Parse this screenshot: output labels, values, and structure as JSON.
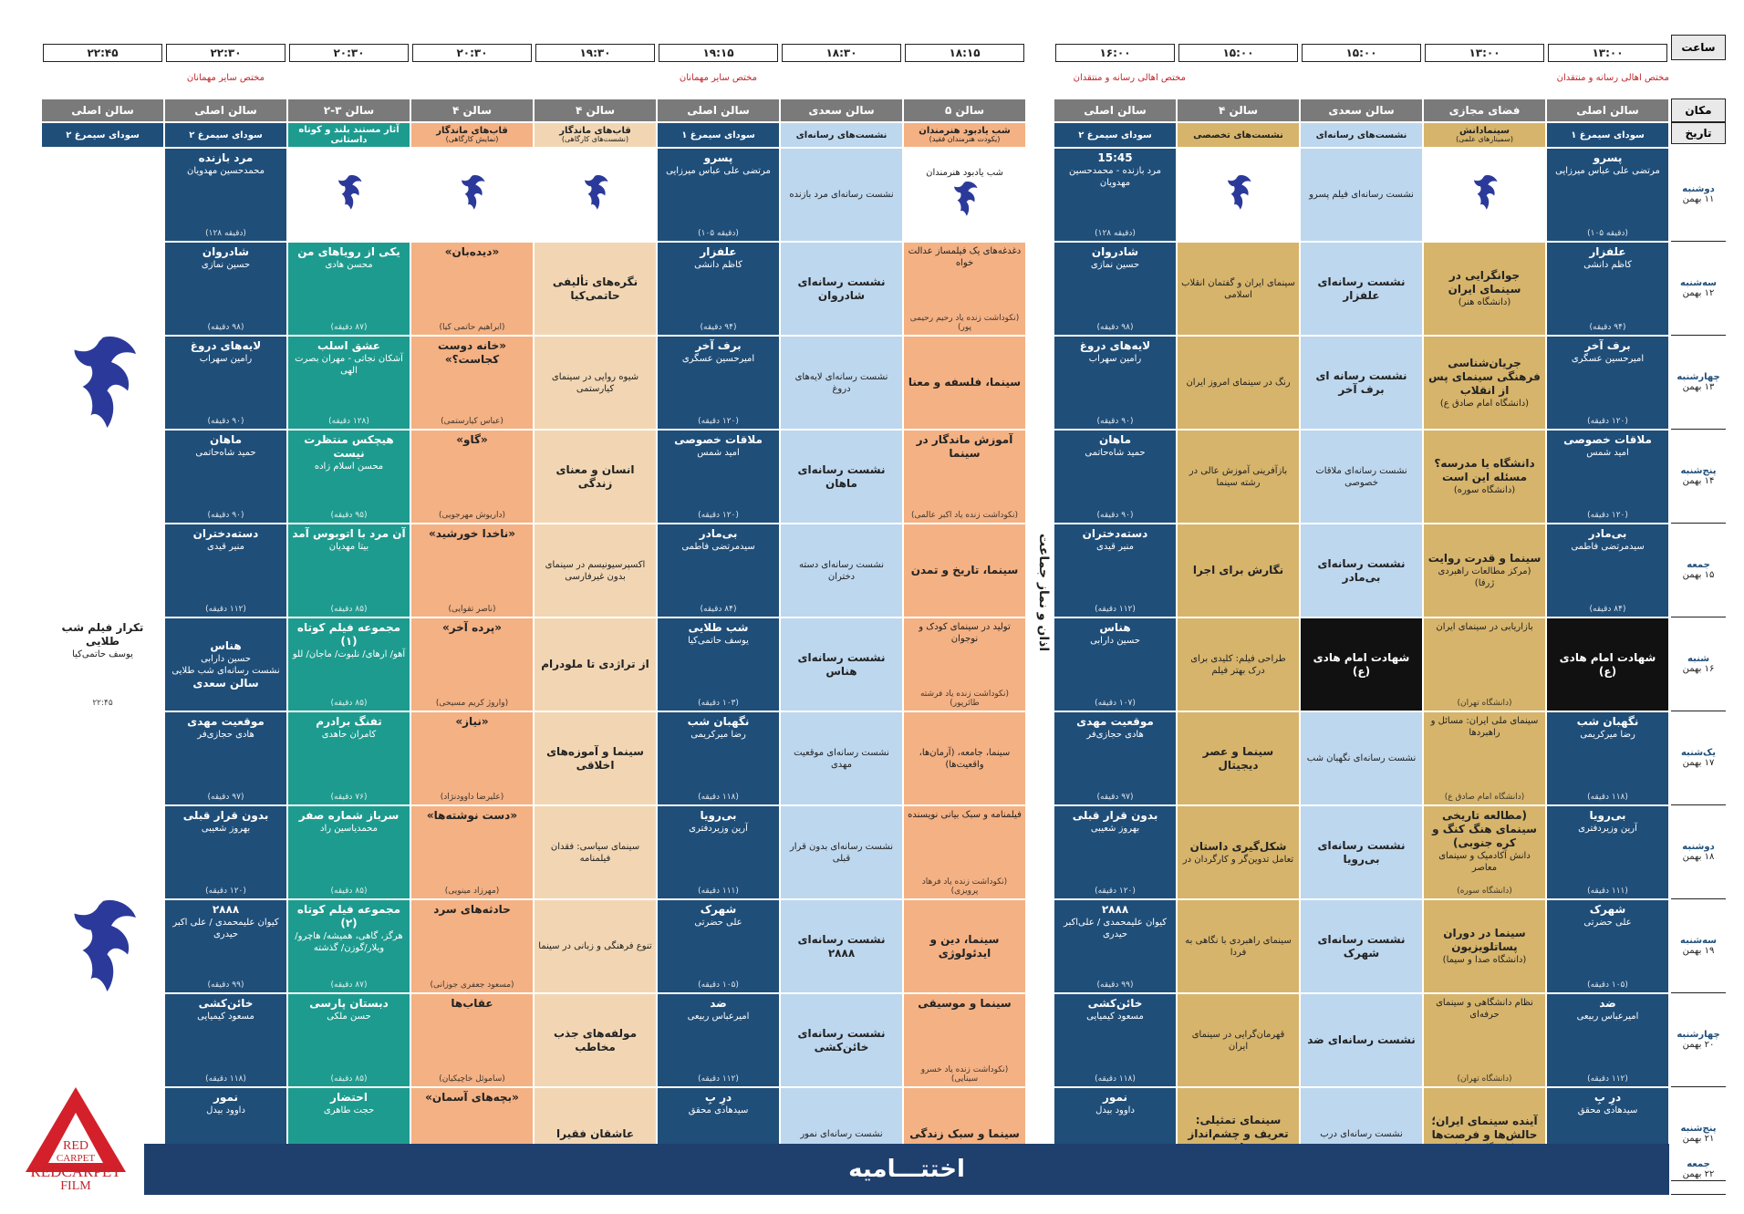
{
  "header": {
    "time_label": "ساعت",
    "place_label": "مکان",
    "date_label": "تاریخ"
  },
  "times": [
    "۱۳:۰۰",
    "۱۳:۰۰",
    "۱۵:۰۰",
    "۱۵:۰۰",
    "۱۶:۰۰",
    "۱۸:۱۵",
    "۱۸:۳۰",
    "۱۹:۱۵",
    "۱۹:۳۰",
    "۲۰:۳۰",
    "۲۰:۳۰",
    "۲۲:۳۰",
    "۲۲:۴۵"
  ],
  "notes": {
    "right_group": "مختص اهالی رسانه و منتقدان",
    "right_group2": "مختص اهالی رسانه و منتقدان",
    "left_group": "مختص سایر مهمانان",
    "left_group2": "مختص سایر مهمانان"
  },
  "venues": [
    "سالن اصلی",
    "فضای مجازی",
    "سالن سعدی",
    "سالن ۴",
    "سالن اصلی",
    "سالن ۵",
    "سالن سعدی",
    "سالن اصلی",
    "سالن ۴",
    "سالن ۴",
    "سالن ۳-۲",
    "سالن اصلی",
    "سالن اصلی"
  ],
  "subheads": [
    {
      "t": "سودای سیمرغ ۱",
      "s": ""
    },
    {
      "t": "سینمادانش",
      "s": "(سمینارهای علمی)"
    },
    {
      "t": "نشست‌های رسانه‌ای",
      "s": ""
    },
    {
      "t": "نشست‌های تخصصی",
      "s": ""
    },
    {
      "t": "سودای سیمرغ ۲",
      "s": ""
    },
    {
      "t": "شب یادبود هنرمندان",
      "s": "(یکودت هنرمندان فقید)"
    },
    {
      "t": "نشست‌های رسانه‌ای",
      "s": ""
    },
    {
      "t": "سودای سیمرغ ۱",
      "s": ""
    },
    {
      "t": "قاب‌های ماندگار",
      "s": "(نشست‌های کارگاهی)"
    },
    {
      "t": "قاب‌های ماندگار",
      "s": "(نمایش کارگاهی)"
    },
    {
      "t": "آثار مستند بلند و کوتاه داستانی",
      "s": ""
    },
    {
      "t": "سودای سیمرغ ۲",
      "s": ""
    },
    {
      "t": "سودای سیمرغ ۲",
      "s": ""
    }
  ],
  "days": [
    {
      "name": "دوشنبه",
      "date": "۱۱ بهمن"
    },
    {
      "name": "سه‌شنبه",
      "date": "۱۲ بهمن"
    },
    {
      "name": "چهارشنبه",
      "date": "۱۳ بهمن"
    },
    {
      "name": "پنج‌شنبه",
      "date": "۱۴ بهمن"
    },
    {
      "name": "جمعه",
      "date": "۱۵ بهمن"
    },
    {
      "name": "شنبه",
      "date": "۱۶ بهمن"
    },
    {
      "name": "یک‌شنبه",
      "date": "۱۷ بهمن"
    },
    {
      "name": "دوشنبه",
      "date": "۱۸ بهمن"
    },
    {
      "name": "سه‌شنبه",
      "date": "۱۹ بهمن"
    },
    {
      "name": "چهارشنبه",
      "date": "۲۰ بهمن"
    },
    {
      "name": "پنج‌شنبه",
      "date": "۲۱ بهمن"
    },
    {
      "name": "جمعه",
      "date": "۲۲ بهمن"
    }
  ],
  "grid": [
    [
      {
        "t": "پسرو",
        "s": "مرتضی علی عباس میرزایی",
        "d": "(دقیقه ۱۰۵)"
      },
      {
        "logo": true
      },
      {
        "s": "نشست رسانه‌ای فیلم پسرو"
      },
      {
        "logo": true
      },
      {
        "t": "15:45",
        "s": "مرد بازنده - محمدحسین مهدویان",
        "d": "(دقیقه ۱۲۸)"
      },
      {
        "logo": true,
        "s": "شب یادبود هنرمندان"
      },
      {
        "s": "نشست رسانه‌ای مرد بازنده"
      },
      {
        "t": "پسرو",
        "s": "مرتضی علی عباس میرزایی",
        "d": "(دقیقه ۱۰۵)"
      },
      {
        "logo": true
      },
      {
        "logo": true
      },
      {
        "logo": true
      },
      {
        "t": "مرد بازنده",
        "s": "محمدحسین مهدویان",
        "d": "(دقیقه ۱۲۸)"
      },
      {
        "bigbird": true
      }
    ],
    [
      {
        "t": "علفزار",
        "s": "کاظم دانشی",
        "d": "(۹۴ دقیقه)"
      },
      {
        "t": "جوانگرایی در سینمای ایران",
        "s": "(دانشگاه هنر)"
      },
      {
        "t": "نشست رسانه‌ای علفزار"
      },
      {
        "s": "سینمای ایران و گفتمان انقلاب اسلامی"
      },
      {
        "t": "شادروان",
        "s": "حسین نمازی",
        "d": "(۹۸ دقیقه)"
      },
      {
        "s": "دغدغه‌های یک فیلمساز عدالت خواه",
        "d": "(نکوداشت زنده یاد رحیم رحیمی پور)"
      },
      {
        "t": "نشست رسانه‌ای شادروان"
      },
      {
        "t": "علفزار",
        "s": "کاظم دانشی",
        "d": "(۹۴ دقیقه)"
      },
      {
        "t": "نگره‌های تألیفی حاتمی‌کیا"
      },
      {
        "t": "«دیده‌بان»",
        "d": "(ابراهیم حاتمی کیا)"
      },
      {
        "t": "یکی از رویاهای من",
        "s": "محسن هادی",
        "d": "(۸۷ دقیقه)"
      },
      {
        "t": "شادروان",
        "s": "حسین نمازی",
        "d": "(۹۸ دقیقه)"
      }
    ],
    [
      {
        "t": "برف آخر",
        "s": "امیرحسین عسگری",
        "d": "(۱۲۰ دقیقه)"
      },
      {
        "t": "جریان‌شناسی فرهنگی سینمای پس از انقلاب",
        "s": "(دانشگاه امام صادق ع)"
      },
      {
        "t": "نشست رسانه ای برف آخر"
      },
      {
        "s": "رنگ در سینمای امروز ایران"
      },
      {
        "t": "لایه‌های دروغ",
        "s": "رامین سهراب",
        "d": "(۹۰ دقیقه)"
      },
      {
        "t": "سینما، فلسفه و معنا"
      },
      {
        "s": "نشست رسانه‌ای لایه‌های دروغ"
      },
      {
        "t": "برف آخر",
        "s": "امیرحسین عسگری",
        "d": "(۱۲۰ دقیقه)"
      },
      {
        "s": "شیوه روایی در سینمای کیارستمی"
      },
      {
        "t": "«خانه دوست کجاست؟»",
        "d": "(عباس کیارستمی)"
      },
      {
        "t": "عشق اسلب",
        "s": "آشکان نجاتی - مهران بصرت الهی",
        "d": "(۱۲۸ دقیقه)"
      },
      {
        "t": "لایه‌های دروغ",
        "s": "رامین سهراب",
        "d": "(۹۰ دقیقه)"
      }
    ],
    [
      {
        "t": "ملاقات خصوصی",
        "s": "امید شمس",
        "d": "(۱۲۰ دقیقه)"
      },
      {
        "t": "دانشگاه یا مدرسه؟ مسئله این است",
        "s": "(دانشگاه سوره)"
      },
      {
        "s": "نشست رسانه‌ای ملاقات خصوصی"
      },
      {
        "s": "بازآفرینی آموزش عالی در رشته سینما"
      },
      {
        "t": "ماهان",
        "s": "حمید شاه‌حاتمی",
        "d": "(۹۰ دقیقه)"
      },
      {
        "t": "آموزش ماندگار در سینما",
        "d": "(نکوداشت زنده یاد اکبر عالمی)"
      },
      {
        "t": "نشست رسانه‌ای ماهان"
      },
      {
        "t": "ملاقات خصوصی",
        "s": "امید شمس",
        "d": "(۱۲۰ دقیقه)"
      },
      {
        "t": "انسان و معنای زندگی"
      },
      {
        "t": "«گاو»",
        "d": "(داریوش مهرجویی)"
      },
      {
        "t": "هیچکس منتظرت نیست",
        "s": "محسن اسلام زاده",
        "d": "(۹۵ دقیقه)"
      },
      {
        "t": "ماهان",
        "s": "حمید شاه‌حاتمی",
        "d": "(۹۰ دقیقه)"
      }
    ],
    [
      {
        "t": "بی‌مادر",
        "s": "سیدمرتضی فاطمی",
        "d": "(۸۴ دقیقه)"
      },
      {
        "t": "سینما و قدرت روایت",
        "s": "(مرکز مطالعات راهبردی ژرفا)"
      },
      {
        "t": "نشست رسانه‌ای بی‌مادر"
      },
      {
        "t": "نگارش برای اجرا"
      },
      {
        "t": "دسته‌دختران",
        "s": "منیر قیدی",
        "d": "(۱۱۲ دقیقه)"
      },
      {
        "t": "سینما، تاریخ و تمدن"
      },
      {
        "s": "نشست رسانه‌ای دسته دختران"
      },
      {
        "t": "بی‌مادر",
        "s": "سیدمرتضی فاطمی",
        "d": "(۸۴ دقیقه)"
      },
      {
        "s": "اکسپرسیونیسم در سینمای بدون غیرفارسی"
      },
      {
        "t": "«ناخدا خورشید»",
        "d": "(ناصر تقوایی)"
      },
      {
        "t": "آن مرد با اتوبوس آمد",
        "s": "بیتا مهدیان",
        "d": "(۸۵ دقیقه)"
      },
      {
        "t": "دسته‌دختران",
        "s": "منیر قیدی",
        "d": "(۱۱۲ دقیقه)"
      }
    ],
    [
      {
        "t": "شهادت امام هادی (ع)",
        "black": true
      },
      {
        "s": "بازاریابی در سینمای ایران",
        "d": "(دانشگاه تهران)"
      },
      {
        "t": "شهادت امام هادی (ع)",
        "black": true
      },
      {
        "s": "طراحی فیلم: کلیدی برای درک بهتر فیلم"
      },
      {
        "t": "هناس",
        "s": "حسین دارابی",
        "d": "(۱۰۷ دقیقه)"
      },
      {
        "s": "تولید در سینمای کودک و نوجوان",
        "d": "(نکوداشت زنده یاد فرشته طائرپور)"
      },
      {
        "t": "نشست رسانه‌ای هناس"
      },
      {
        "t": "شب طلایی",
        "s": "یوسف حاتمی‌کیا",
        "d": "(۱۰۳ دقیقه)"
      },
      {
        "t": "از تراژدی تا ملودرام"
      },
      {
        "t": "«پرده آخر»",
        "d": "(واروژ کریم مسیحی)"
      },
      {
        "t": "مجموعه فیلم کوتاه (۱)",
        "s": "آهو/ ارهای/ نلبوت/ ماجان/ للو",
        "d": "(۸۵ دقیقه)"
      },
      {
        "t": "هناس",
        "s": "حسین دارابی",
        "extra": "نشست رسانه‌ای شب طلایی",
        "extra2": "سالن سعدی"
      },
      {
        "t": "تکرار فیلم شب طلایی",
        "s": "یوسف حاتمی‌کیا",
        "d": "۲۲:۴۵",
        "white": true
      }
    ],
    [
      {
        "t": "نگهبان شب",
        "s": "رضا میرکریمی",
        "d": "(۱۱۸ دقیقه)"
      },
      {
        "s": "سینمای ملی ایران: مسائل و راهبردها",
        "d": "(دانشگاه امام صادق ع)"
      },
      {
        "s": "نشست رسانه‌ای نگهبان شب"
      },
      {
        "t": "سینما و عصر دیجیتال"
      },
      {
        "t": "موقعیت مهدی",
        "s": "هادی حجازی‌فر",
        "d": "(۹۷ دقیقه)"
      },
      {
        "s": "سینما، جامعه، (آرمان‌ها، واقعیت‌ها)"
      },
      {
        "s": "نشست رسانه‌ای موقعیت مهدی"
      },
      {
        "t": "نگهبان شب",
        "s": "رضا میرکریمی",
        "d": "(۱۱۸ دقیقه)"
      },
      {
        "t": "سینما و آموزه‌های اخلاقی"
      },
      {
        "t": "«نیاز»",
        "d": "(علیرضا داوودنژاد)"
      },
      {
        "t": "تفنگ برادرم",
        "s": "کامران حاهدی",
        "d": "(۷۶ دقیقه)"
      },
      {
        "t": "موقعیت مهدی",
        "s": "هادی حجازی‌فر",
        "d": "(۹۷ دقیقه)"
      },
      {
        "bigbird": true
      }
    ],
    [
      {
        "t": "بی‌رویا",
        "s": "آرین وزیردفتری",
        "d": "(۱۱۱ دقیقه)"
      },
      {
        "t": "(مطالعه تاریخی سینمای هنگ کنگ و کره جنوبی)",
        "s": "دانش آکادمیک و سینمای معاصر",
        "d": "(دانشگاه سوره)"
      },
      {
        "t": "نشست رسانه‌ای بی‌رویا"
      },
      {
        "t": "شکل‌گیری داستان",
        "s": "تعامل تدوین‌گر و کارگردان در"
      },
      {
        "t": "بدون قرار قبلی",
        "s": "بهروز شعیبی",
        "d": "(۱۲۰ دقیقه)"
      },
      {
        "s": "فیلمنامه و سبک بیانی نویسنده",
        "d": "(نکوداشت زنده یاد فرهاد پرویزی)"
      },
      {
        "s": "نشست رسانه‌ای بدون قرار قبلی"
      },
      {
        "t": "بی‌رویا",
        "s": "آرین وزیردفتری",
        "d": "(۱۱۱ دقیقه)"
      },
      {
        "s": "سینمای سیاسی: فقدان فیلمنامه"
      },
      {
        "t": "«دست نوشته‌ها»",
        "d": "(مهرزاد مینویی)"
      },
      {
        "t": "سرباز شماره صفر",
        "s": "محمدیاسین راد",
        "d": "(۸۵ دقیقه)"
      },
      {
        "t": "بدون قرار قبلی",
        "s": "بهروز شعیبی",
        "d": "(۱۲۰ دقیقه)"
      }
    ],
    [
      {
        "t": "شهرک",
        "s": "علی حضرتی",
        "d": "(۱۰۵ دقیقه)"
      },
      {
        "t": "سینما در دوران پساتلویزیون",
        "s": "(دانشگاه صدا و سیما)"
      },
      {
        "t": "نشست رسانه‌ای شهرک"
      },
      {
        "s": "سینمای راهبردی با نگاهی به فردا"
      },
      {
        "t": "۲۸۸۸",
        "s": "کیوان علیمحمدی / علی‌اکبر حیدری",
        "d": "(۹۹ دقیقه)"
      },
      {
        "t": "سینما، دین و ایدئولوژی"
      },
      {
        "t": "نشست رسانه‌ای ۲۸۸۸"
      },
      {
        "t": "شهرک",
        "s": "علی حضرتی",
        "d": "(۱۰۵ دقیقه)"
      },
      {
        "s": "تنوع فرهنگی و زبانی در سینما"
      },
      {
        "t": "حادثه‌های سرد",
        "d": "(مسعود جعفری جوزانی)"
      },
      {
        "t": "مجموعه فیلم کوتاه (۲)",
        "s": "هرگز، گاهی، همیشه/ هاچرو/ویلار/گوزن/ گذشته",
        "d": "(۸۷ دقیقه)"
      },
      {
        "t": "۲۸۸۸",
        "s": "کیوان علیمحمدی / علی اکبر حیدری",
        "d": "(۹۹ دقیقه)"
      }
    ],
    [
      {
        "t": "ضد",
        "s": "امیرعباس ربیعی",
        "d": "(۱۱۲ دقیقه)"
      },
      {
        "s": "نظام دانشگاهی و سینمای حرفه‌ای",
        "d": "(دانشگاه تهران)"
      },
      {
        "t": "نشست رسانه‌ای ضد"
      },
      {
        "s": "قهرمان‌گرایی در سینمای ایران"
      },
      {
        "t": "خائن‌کشی",
        "s": "مسعود کیمیایی",
        "d": "(۱۱۸ دقیقه)"
      },
      {
        "t": "سینما و موسیقی",
        "d": "(نکوداشت زنده یاد خسرو سینایی)"
      },
      {
        "t": "نشست رسانه‌ای خائن‌کشی"
      },
      {
        "t": "ضد",
        "s": "امیرعباس ربیعی",
        "d": "(۱۱۲ دقیقه)"
      },
      {
        "t": "مولفه‌های جذب مخاطب"
      },
      {
        "t": "عقاب‌ها",
        "d": "(ساموئل خاچیکیان)"
      },
      {
        "t": "دبستان پارسی",
        "s": "حسن ملکی",
        "d": "(۸۵ دقیقه)"
      },
      {
        "t": "خائن‌کشی",
        "s": "مسعود کیمیایی",
        "d": "(۱۱۸ دقیقه)"
      }
    ],
    [
      {
        "t": "درِ بِ",
        "s": "سیدهادی محقق",
        "d": "(۹۵ دقیقه)"
      },
      {
        "t": "آینده سینمای ایران؛ حالش‌ها و فرصت‌ها",
        "s": "(دانشگاه تهران)"
      },
      {
        "s": "نشست رسانه‌ای درب"
      },
      {
        "t": "سینمای تمثیلی: تعریف و چشم‌انداز نظری"
      },
      {
        "t": "نمور",
        "s": "داوود بیدل",
        "d": "(۸۰ دقیقه)"
      },
      {
        "t": "سینما و سبک زندگی"
      },
      {
        "s": "نشست رسانه‌ای نمور"
      },
      {
        "t": "درِ بِ",
        "s": "سیدهادی محقق",
        "d": "(۹۵ دقیقه)"
      },
      {
        "t": "عاشقان فقیرا"
      },
      {
        "t": "«بچه‌های آسمان»",
        "d": "(مجید مجیدی)"
      },
      {
        "t": "احتضار",
        "s": "حجت طاهری",
        "d": "(۸۵ دقیقه)"
      },
      {
        "t": "نمور",
        "s": "داوود بیدل",
        "d": "(۸۰ دقیقه)"
      }
    ]
  ],
  "closing": "اختتـــامیه",
  "vertical_text": "اذان و نماز جماعت",
  "watermark": {
    "line1": "RED",
    "line2": "CARPET",
    "line3": "REDCARPET",
    "line4": "FILM"
  }
}
